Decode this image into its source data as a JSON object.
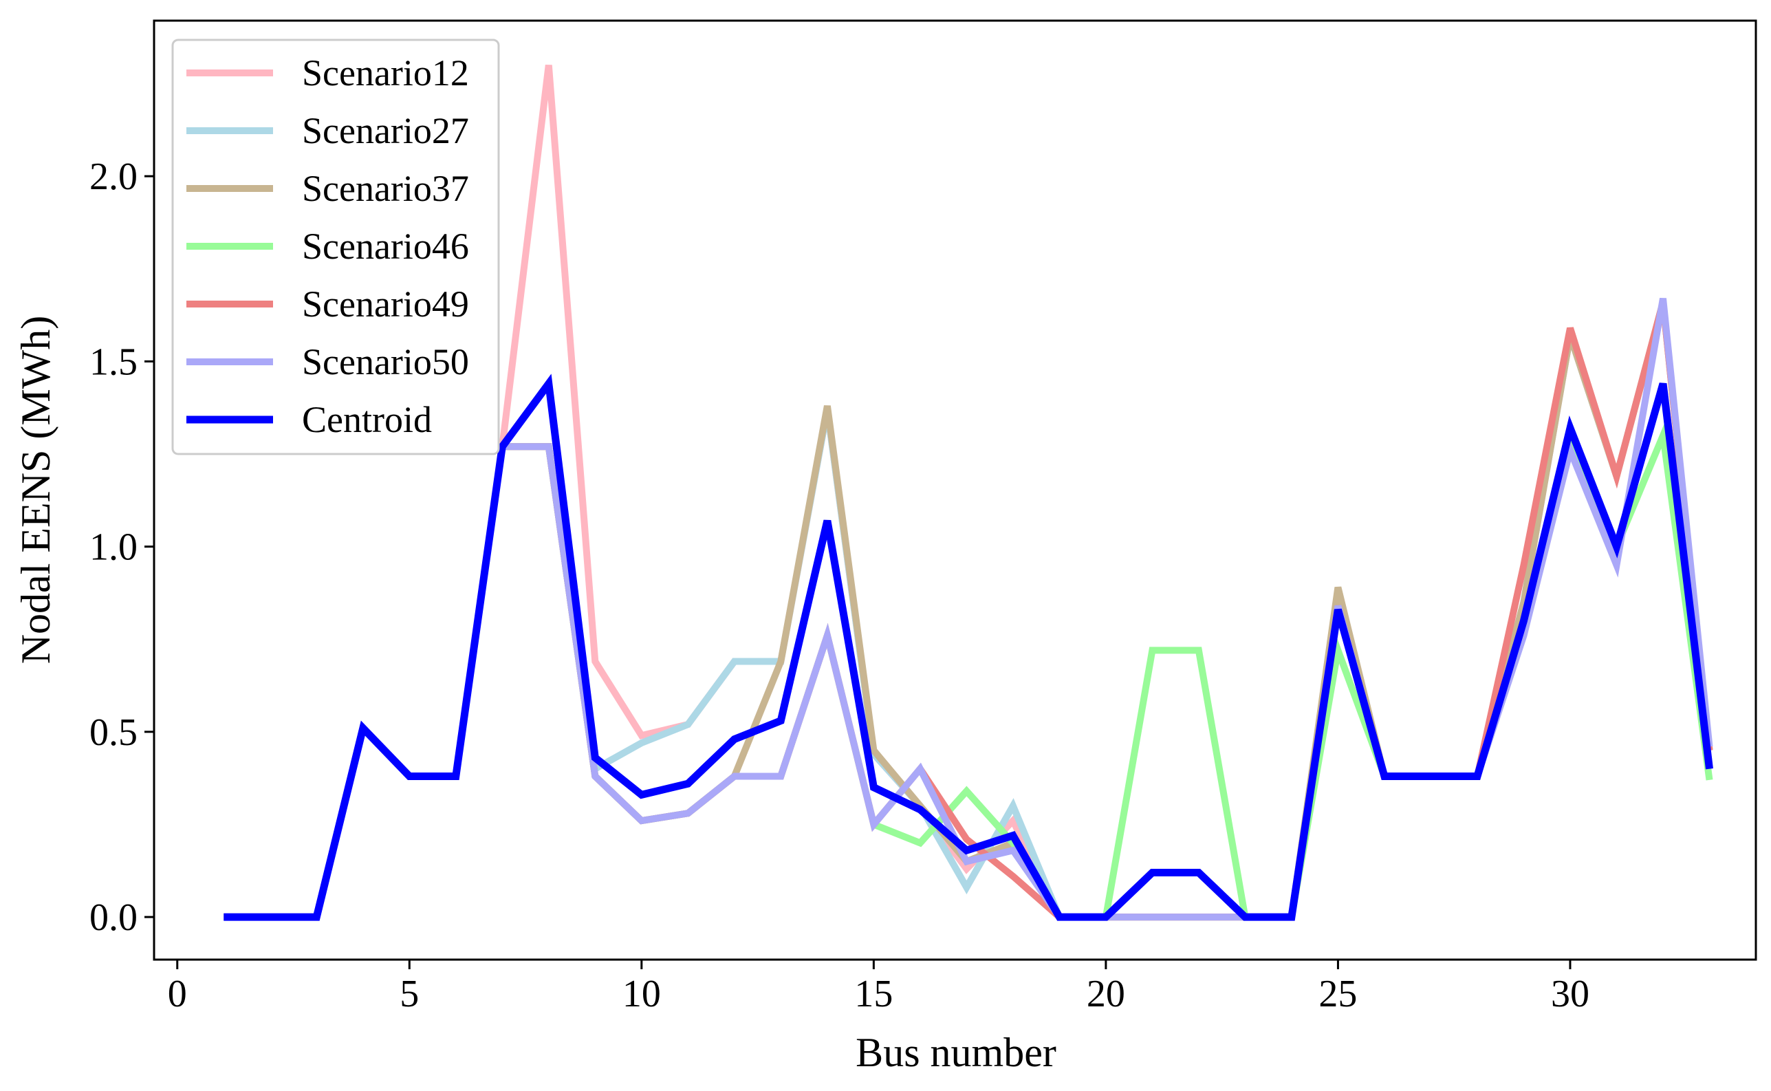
{
  "chart_data": {
    "type": "line",
    "title": "",
    "xlabel": "Bus number",
    "ylabel": "Nodal EENS (MWh)",
    "xlim": [
      -0.5,
      34.0
    ],
    "ylim": [
      -0.115,
      2.42
    ],
    "xticks": [
      0,
      5,
      10,
      15,
      20,
      25,
      30
    ],
    "xtick_labels": [
      "0",
      "5",
      "10",
      "15",
      "20",
      "25",
      "30"
    ],
    "yticks": [
      0.0,
      0.5,
      1.0,
      1.5,
      2.0
    ],
    "ytick_labels": [
      "0.0",
      "0.5",
      "1.0",
      "1.5",
      "2.0"
    ],
    "grid": false,
    "legend_position": "top-left",
    "x": [
      1,
      2,
      3,
      4,
      5,
      6,
      7,
      8,
      9,
      10,
      11,
      12,
      13,
      14,
      15,
      16,
      17,
      18,
      19,
      20,
      21,
      22,
      23,
      24,
      25,
      26,
      27,
      28,
      29,
      30,
      31,
      32,
      33
    ],
    "series": [
      {
        "name": "Scenario12",
        "color": "#ffb6c1",
        "width": 10,
        "values": [
          0,
          0,
          0,
          0.51,
          0.38,
          0.38,
          1.27,
          2.3,
          0.69,
          0.49,
          0.52,
          0.69,
          0.69,
          1.37,
          0.44,
          0.3,
          0.13,
          0.26,
          0,
          0,
          0,
          0,
          0,
          0,
          0.88,
          0.38,
          0.38,
          0.38,
          0.85,
          1.57,
          1.19,
          1.66,
          0.45
        ]
      },
      {
        "name": "Scenario27",
        "color": "#add8e6",
        "width": 10,
        "values": [
          0,
          0,
          0,
          0.51,
          0.38,
          0.38,
          1.27,
          1.27,
          0.4,
          0.47,
          0.52,
          0.69,
          0.69,
          1.37,
          0.44,
          0.3,
          0.08,
          0.3,
          0,
          0,
          0,
          0,
          0,
          0,
          0.88,
          0.38,
          0.38,
          0.38,
          0.85,
          1.57,
          1.19,
          1.66,
          0.45
        ]
      },
      {
        "name": "Scenario37",
        "color": "#c8b591",
        "width": 10,
        "values": [
          0,
          0,
          0,
          0.51,
          0.38,
          0.38,
          1.27,
          1.27,
          0.38,
          0.26,
          0.28,
          0.38,
          0.69,
          1.38,
          0.45,
          0.3,
          0.15,
          0.2,
          0,
          0,
          0,
          0,
          0,
          0,
          0.89,
          0.38,
          0.38,
          0.38,
          0.85,
          1.57,
          1.19,
          1.66,
          0.45
        ]
      },
      {
        "name": "Scenario46",
        "color": "#98fb98",
        "width": 10,
        "values": [
          0,
          0,
          0,
          0.51,
          0.38,
          0.38,
          1.27,
          1.27,
          0.38,
          0.26,
          0.28,
          0.38,
          0.38,
          0.76,
          0.25,
          0.2,
          0.34,
          0.2,
          0,
          0,
          0.72,
          0.72,
          0,
          0,
          0.72,
          0.38,
          0.38,
          0.38,
          0.8,
          1.27,
          1.0,
          1.3,
          0.37
        ]
      },
      {
        "name": "Scenario49",
        "color": "#ee8080",
        "width": 10,
        "values": [
          0,
          0,
          0,
          0.51,
          0.38,
          0.38,
          1.27,
          1.27,
          0.38,
          0.26,
          0.28,
          0.38,
          0.38,
          0.76,
          0.25,
          0.4,
          0.21,
          0.11,
          0,
          0,
          0,
          0,
          0,
          0,
          0.84,
          0.38,
          0.38,
          0.38,
          0.95,
          1.59,
          1.19,
          1.66,
          0.45
        ]
      },
      {
        "name": "Scenario50",
        "color": "#aaa8f8",
        "width": 10,
        "values": [
          0,
          0,
          0,
          0.51,
          0.38,
          0.38,
          1.27,
          1.27,
          0.38,
          0.26,
          0.28,
          0.38,
          0.38,
          0.76,
          0.25,
          0.4,
          0.15,
          0.18,
          0,
          0,
          0,
          0,
          0,
          0,
          0.84,
          0.38,
          0.38,
          0.38,
          0.76,
          1.26,
          0.95,
          1.67,
          0.46
        ]
      },
      {
        "name": "Centroid",
        "color": "#0000ff",
        "width": 11,
        "values": [
          0,
          0,
          0,
          0.51,
          0.38,
          0.38,
          1.27,
          1.44,
          0.43,
          0.33,
          0.36,
          0.48,
          0.53,
          1.07,
          0.35,
          0.29,
          0.18,
          0.22,
          0,
          0,
          0.12,
          0.12,
          0,
          0,
          0.83,
          0.38,
          0.38,
          0.38,
          0.8,
          1.32,
          1.0,
          1.44,
          0.4
        ]
      }
    ]
  }
}
